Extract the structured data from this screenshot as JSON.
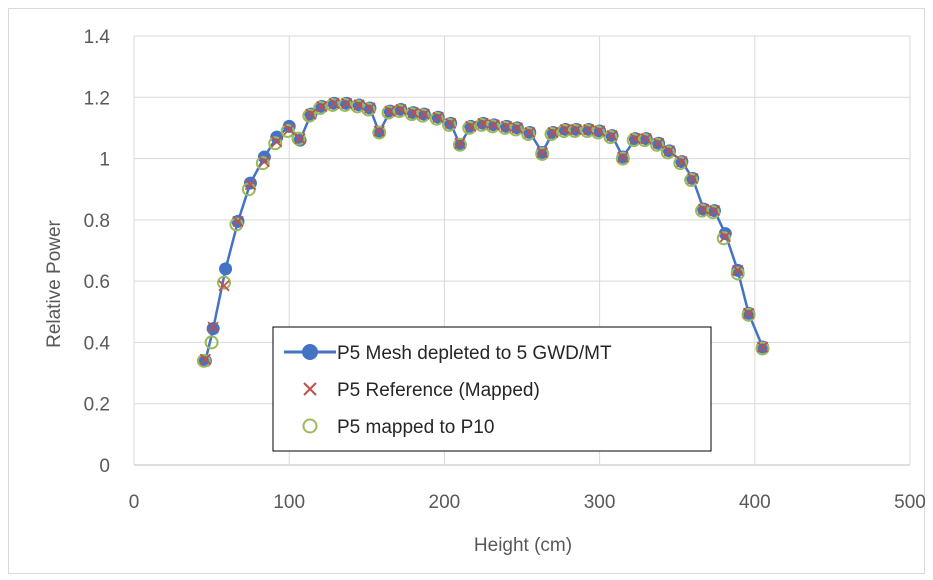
{
  "chart_data": {
    "type": "scatter",
    "title": "",
    "xlabel": "Height (cm)",
    "ylabel": "Relative Power",
    "xlim": [
      0,
      500
    ],
    "ylim": [
      0,
      1.4
    ],
    "x_ticks": [
      "0",
      "100",
      "200",
      "300",
      "400",
      "500"
    ],
    "y_ticks": [
      "0",
      "0.2",
      "0.4",
      "0.6",
      "0.8",
      "1",
      "1.2",
      "1.4"
    ],
    "grid": true,
    "legend_position": "bottom-left",
    "series": [
      {
        "name": "P5 Mesh depleted to 5 GWD/MT",
        "marker": "filled-circle-with-line",
        "color": "#4472C4",
        "x": [
          46,
          51,
          59,
          67,
          75,
          84,
          92,
          100,
          107,
          114,
          121,
          129,
          137,
          145,
          152,
          158,
          165,
          172,
          180,
          187,
          196,
          204,
          210,
          217,
          225,
          232,
          240,
          247,
          255,
          263,
          270,
          278,
          285,
          293,
          300,
          308,
          315,
          323,
          330,
          338,
          345,
          353,
          360,
          367,
          374,
          381,
          389,
          396,
          405
        ],
        "y": [
          0.34,
          0.445,
          0.64,
          0.795,
          0.92,
          1.005,
          1.07,
          1.105,
          1.06,
          1.145,
          1.17,
          1.18,
          1.18,
          1.175,
          1.165,
          1.085,
          1.155,
          1.16,
          1.15,
          1.145,
          1.135,
          1.115,
          1.045,
          1.105,
          1.115,
          1.11,
          1.105,
          1.1,
          1.085,
          1.02,
          1.085,
          1.095,
          1.095,
          1.095,
          1.09,
          1.075,
          1.005,
          1.065,
          1.065,
          1.05,
          1.025,
          0.99,
          0.935,
          0.835,
          0.83,
          0.755,
          0.635,
          0.495,
          0.385
        ]
      },
      {
        "name": "P5 Reference (Mapped)",
        "marker": "x",
        "color": "#C0504D",
        "x": [
          46,
          51,
          58,
          67,
          75,
          84,
          92,
          100,
          107,
          114,
          121,
          129,
          137,
          145,
          152,
          158,
          165,
          172,
          180,
          187,
          196,
          204,
          210,
          217,
          225,
          232,
          240,
          247,
          255,
          263,
          270,
          278,
          285,
          293,
          300,
          308,
          315,
          323,
          330,
          338,
          345,
          353,
          360,
          367,
          374,
          381,
          389,
          396,
          405
        ],
        "y": [
          0.345,
          0.45,
          0.585,
          0.795,
          0.915,
          0.99,
          1.055,
          1.095,
          1.065,
          1.145,
          1.17,
          1.18,
          1.18,
          1.175,
          1.165,
          1.09,
          1.155,
          1.16,
          1.15,
          1.145,
          1.135,
          1.115,
          1.05,
          1.105,
          1.115,
          1.11,
          1.105,
          1.1,
          1.085,
          1.02,
          1.085,
          1.095,
          1.095,
          1.095,
          1.09,
          1.075,
          1.005,
          1.065,
          1.065,
          1.05,
          1.025,
          0.99,
          0.935,
          0.835,
          0.83,
          0.745,
          0.635,
          0.495,
          0.385
        ]
      },
      {
        "name": "P5 mapped to P10",
        "marker": "open-circle",
        "color": "#9BBB59",
        "x": [
          45,
          50,
          58,
          66,
          74,
          83,
          91,
          99,
          106,
          113,
          120,
          128,
          136,
          144,
          151,
          158,
          164,
          171,
          179,
          186,
          195,
          203,
          210,
          216,
          224,
          231,
          239,
          246,
          254,
          263,
          269,
          277,
          284,
          292,
          299,
          307,
          315,
          322,
          329,
          337,
          344,
          352,
          359,
          366,
          373,
          380,
          389,
          396,
          405
        ],
        "y": [
          0.34,
          0.4,
          0.595,
          0.785,
          0.9,
          0.985,
          1.05,
          1.09,
          1.065,
          1.14,
          1.165,
          1.175,
          1.175,
          1.17,
          1.16,
          1.085,
          1.15,
          1.155,
          1.145,
          1.14,
          1.13,
          1.11,
          1.045,
          1.1,
          1.11,
          1.105,
          1.1,
          1.095,
          1.08,
          1.015,
          1.08,
          1.09,
          1.09,
          1.09,
          1.085,
          1.07,
          1.0,
          1.06,
          1.06,
          1.045,
          1.02,
          0.985,
          0.93,
          0.83,
          0.825,
          0.74,
          0.625,
          0.49,
          0.38
        ]
      }
    ]
  }
}
